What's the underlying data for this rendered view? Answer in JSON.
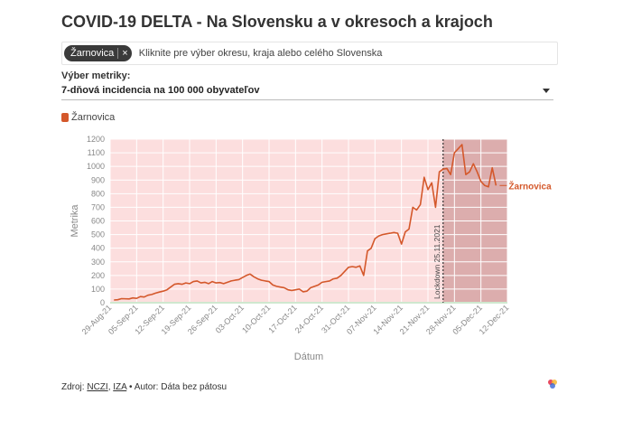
{
  "title": "COVID-19 DELTA - Na Slovensku a v okresoch a krajoch",
  "selector": {
    "chip_label": "Žarnovica",
    "chip_close": "×",
    "placeholder": "Kliknite pre výber okresu, kraja alebo celého Slovenska"
  },
  "metric": {
    "label": "Výber metriky:",
    "selected": "7-dňová incidencia na 100 000 obyvateľov"
  },
  "legend": {
    "label": "Žarnovica"
  },
  "source": {
    "prefix": "Zdroj: ",
    "link1": "NCZI",
    "sep": ", ",
    "link2": "IZA",
    "suffix": " • Autor: Dáta bez pátosu"
  },
  "colors": {
    "line": "#d4582b",
    "background": "#fcdede",
    "lockdown_background": "#dcadad",
    "grid": "#ffffff",
    "axis_text": "#888888"
  },
  "chart_data": {
    "type": "line",
    "xlabel": "Dátum",
    "ylabel": "Metrika",
    "ylim": [
      0,
      1200
    ],
    "yticks": [
      0,
      100,
      200,
      300,
      400,
      500,
      600,
      700,
      800,
      900,
      1000,
      1100,
      1200
    ],
    "x_start": "2021-08-29",
    "x_end": "2021-12-12",
    "xticks": [
      {
        "day": 0,
        "label": "29-Aug-21"
      },
      {
        "day": 7,
        "label": "05-Sep-21"
      },
      {
        "day": 14,
        "label": "12-Sep-21"
      },
      {
        "day": 21,
        "label": "19-Sep-21"
      },
      {
        "day": 28,
        "label": "26-Sep-21"
      },
      {
        "day": 35,
        "label": "03-Oct-21"
      },
      {
        "day": 42,
        "label": "10-Oct-21"
      },
      {
        "day": 49,
        "label": "17-Oct-21"
      },
      {
        "day": 56,
        "label": "24-Oct-21"
      },
      {
        "day": 63,
        "label": "31-Oct-21"
      },
      {
        "day": 70,
        "label": "07-Nov-21"
      },
      {
        "day": 77,
        "label": "14-Nov-21"
      },
      {
        "day": 84,
        "label": "21-Nov-21"
      },
      {
        "day": 91,
        "label": "28-Nov-21"
      },
      {
        "day": 98,
        "label": "05-Dec-21"
      },
      {
        "day": 105,
        "label": "12-Dec-21"
      }
    ],
    "lockdown": {
      "day": 88,
      "label": "Lockdown 25.11.2021"
    },
    "series": [
      {
        "name": "Žarnovica",
        "end_label": "Žarnovica",
        "points": [
          [
            1,
            20
          ],
          [
            2,
            22
          ],
          [
            3,
            30
          ],
          [
            5,
            28
          ],
          [
            6,
            35
          ],
          [
            7,
            32
          ],
          [
            8,
            45
          ],
          [
            9,
            42
          ],
          [
            10,
            55
          ],
          [
            11,
            60
          ],
          [
            12,
            70
          ],
          [
            13,
            78
          ],
          [
            14,
            85
          ],
          [
            15,
            95
          ],
          [
            16,
            115
          ],
          [
            17,
            135
          ],
          [
            18,
            140
          ],
          [
            19,
            135
          ],
          [
            20,
            145
          ],
          [
            21,
            140
          ],
          [
            22,
            155
          ],
          [
            23,
            160
          ],
          [
            24,
            145
          ],
          [
            25,
            150
          ],
          [
            26,
            140
          ],
          [
            27,
            155
          ],
          [
            28,
            145
          ],
          [
            29,
            148
          ],
          [
            30,
            140
          ],
          [
            31,
            150
          ],
          [
            32,
            160
          ],
          [
            33,
            165
          ],
          [
            34,
            170
          ],
          [
            35,
            185
          ],
          [
            36,
            200
          ],
          [
            37,
            210
          ],
          [
            38,
            190
          ],
          [
            39,
            175
          ],
          [
            40,
            165
          ],
          [
            41,
            160
          ],
          [
            42,
            155
          ],
          [
            43,
            130
          ],
          [
            44,
            120
          ],
          [
            45,
            115
          ],
          [
            46,
            110
          ],
          [
            47,
            95
          ],
          [
            48,
            90
          ],
          [
            49,
            95
          ],
          [
            50,
            100
          ],
          [
            51,
            80
          ],
          [
            52,
            85
          ],
          [
            53,
            110
          ],
          [
            54,
            120
          ],
          [
            55,
            130
          ],
          [
            56,
            150
          ],
          [
            57,
            155
          ],
          [
            58,
            160
          ],
          [
            59,
            175
          ],
          [
            60,
            180
          ],
          [
            61,
            200
          ],
          [
            62,
            230
          ],
          [
            63,
            260
          ],
          [
            64,
            265
          ],
          [
            65,
            260
          ],
          [
            66,
            270
          ],
          [
            67,
            200
          ],
          [
            68,
            380
          ],
          [
            69,
            400
          ],
          [
            70,
            470
          ],
          [
            71,
            490
          ],
          [
            72,
            500
          ],
          [
            73,
            505
          ],
          [
            74,
            510
          ],
          [
            75,
            515
          ],
          [
            76,
            510
          ],
          [
            77,
            430
          ],
          [
            78,
            520
          ],
          [
            79,
            540
          ],
          [
            80,
            700
          ],
          [
            81,
            680
          ],
          [
            82,
            720
          ],
          [
            83,
            920
          ],
          [
            84,
            830
          ],
          [
            85,
            880
          ],
          [
            86,
            700
          ],
          [
            87,
            960
          ],
          [
            88,
            980
          ],
          [
            89,
            985
          ],
          [
            90,
            940
          ],
          [
            91,
            1100
          ],
          [
            92,
            1130
          ],
          [
            93,
            1160
          ],
          [
            94,
            940
          ],
          [
            95,
            960
          ],
          [
            96,
            1020
          ],
          [
            97,
            960
          ],
          [
            98,
            890
          ],
          [
            99,
            860
          ],
          [
            100,
            850
          ],
          [
            101,
            990
          ],
          [
            102,
            860
          ]
        ]
      }
    ]
  }
}
